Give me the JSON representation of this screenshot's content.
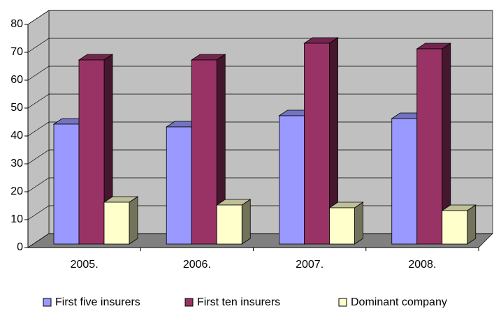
{
  "chart_data": {
    "type": "bar3d",
    "categories": [
      "2005.",
      "2006.",
      "2007.",
      "2008."
    ],
    "series": [
      {
        "name": "First five insurers",
        "color": "#9999ff",
        "values": [
          43,
          42,
          46,
          45
        ]
      },
      {
        "name": "First ten insurers",
        "color": "#993366",
        "values": [
          66,
          66,
          72,
          70
        ]
      },
      {
        "name": "Dominant company",
        "color": "#ffffcc",
        "values": [
          15,
          14,
          13,
          12
        ]
      }
    ],
    "ylim": [
      0,
      80
    ],
    "yticks": [
      0,
      10,
      20,
      30,
      40,
      50,
      60,
      70,
      80
    ],
    "grid": true,
    "legend": "bottom"
  }
}
